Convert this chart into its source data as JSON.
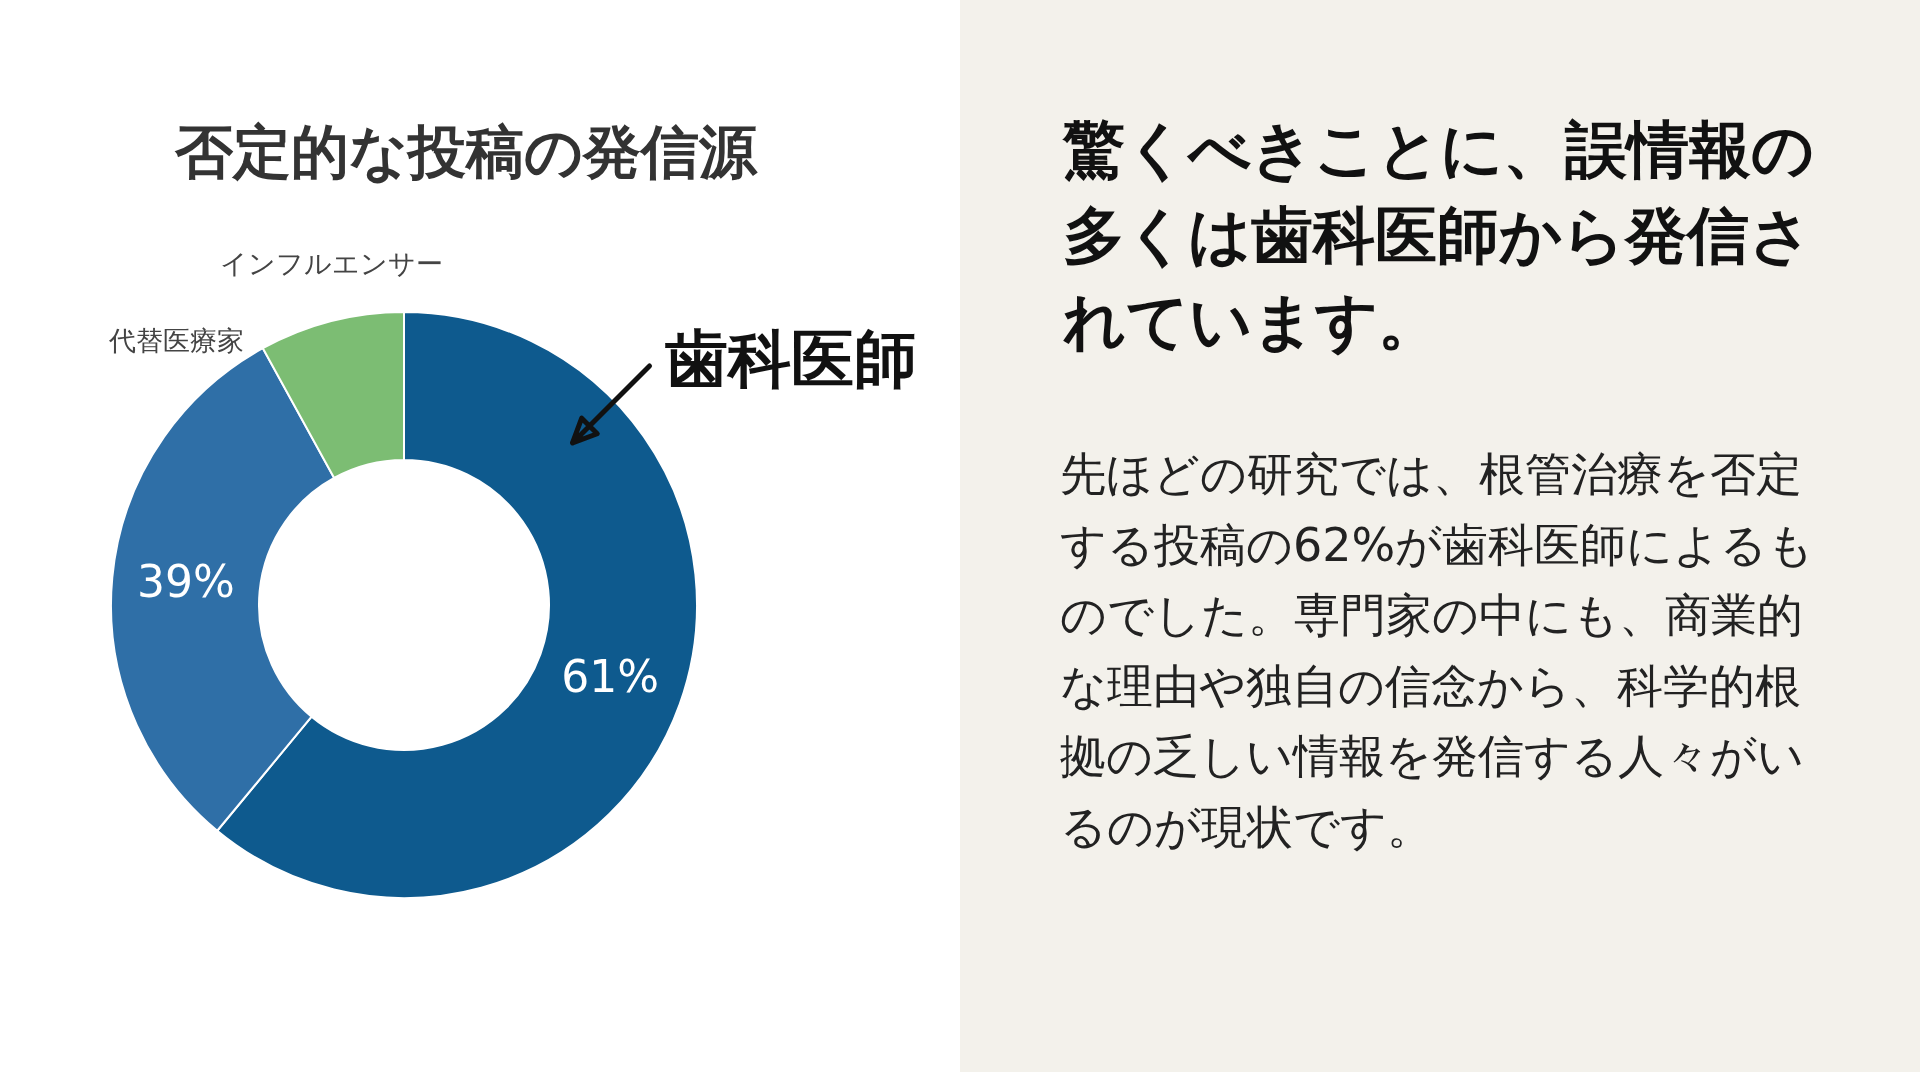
{
  "chart_data": [
    {
      "type": "donut",
      "title": "否定的な投稿の発信源",
      "categories": [
        "歯科医師",
        "代替医療家",
        "インフルエンサー"
      ],
      "values": [
        61,
        31,
        8
      ],
      "colors": [
        "#0e5a8e",
        "#2f6fa7",
        "#7cbd73"
      ],
      "value_labels": [
        "61%",
        null,
        null
      ],
      "annotations": [
        {
          "text": "39%",
          "x": "代替医療家"
        }
      ]
    },
    {
      "type": "other",
      "title": "驚くべきことに、誤情報の多くは歯科医師から発信されています。",
      "annotations": [
        "先ほどの研究では、根管治療を否定する投稿の62%が歯科医師によるものでした。専門家の中にも、商業的な理由や独自の信念から、科学的根拠の乏しい情報を発信する人々がいるのが現状です。"
      ]
    }
  ]
}
